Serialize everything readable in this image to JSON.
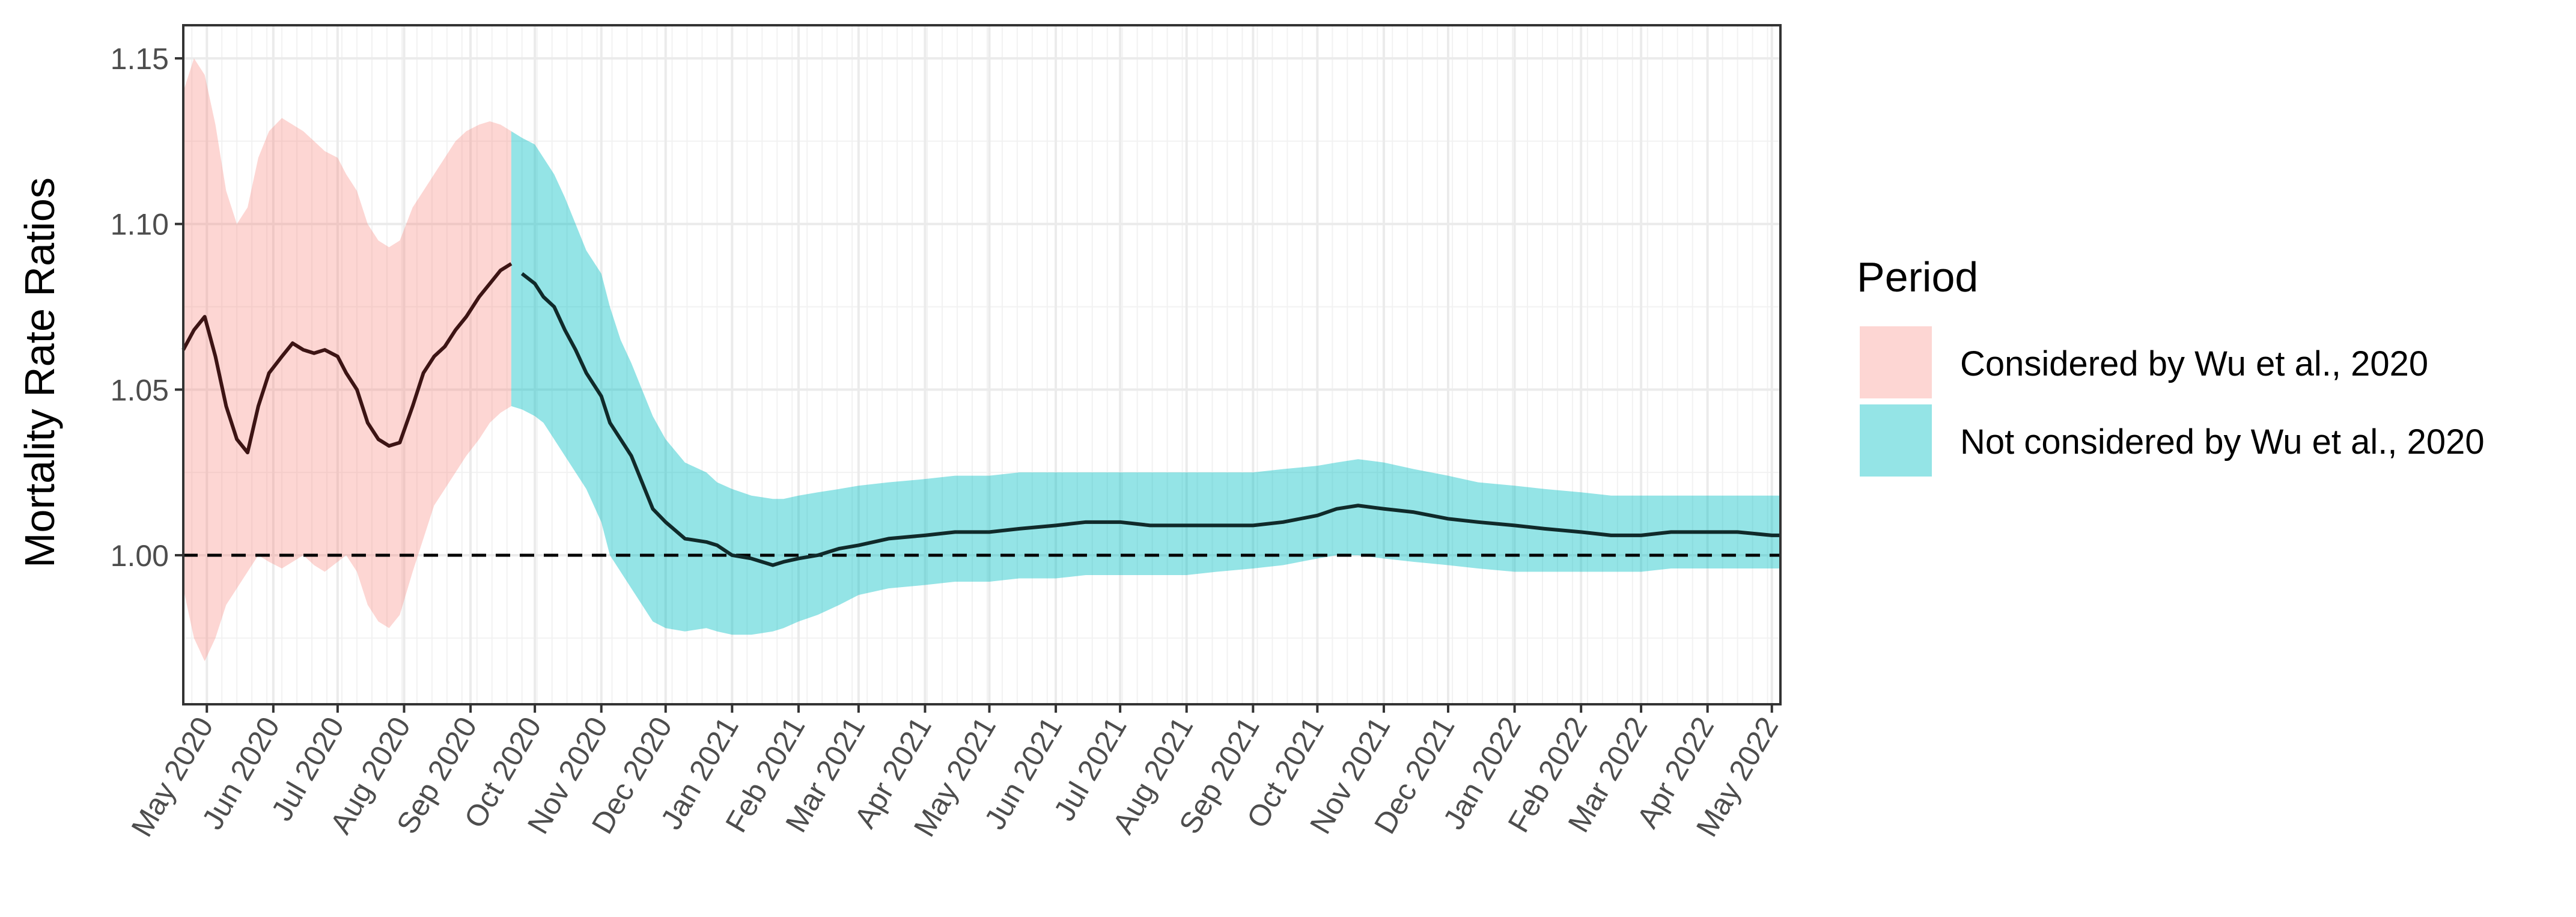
{
  "chart_data": {
    "type": "line",
    "ylabel": "Mortality Rate Ratios",
    "xlabel": "",
    "ylim": [
      0.955,
      1.16
    ],
    "xlim": [
      "2020-04-20",
      "2022-05-05"
    ],
    "yticks": [
      1.0,
      1.05,
      1.1,
      1.15
    ],
    "ytick_labels": [
      "1.00",
      "1.05",
      "1.10",
      "1.15"
    ],
    "xtick_labels": [
      "May 2020",
      "Jun 2020",
      "Jul 2020",
      "Aug 2020",
      "Sep 2020",
      "Oct 2020",
      "Nov 2020",
      "Dec 2020",
      "Jan 2021",
      "Feb 2021",
      "Mar 2021",
      "Apr 2021",
      "May 2021",
      "Jun 2021",
      "Jul 2021",
      "Aug 2021",
      "Sep 2021",
      "Oct 2021",
      "Nov 2021",
      "Dec 2021",
      "Jan 2022",
      "Feb 2022",
      "Mar 2022",
      "Apr 2022",
      "May 2022"
    ],
    "grid": true,
    "reference_line": 1.0,
    "legend": {
      "title": "Period",
      "position": "right",
      "items": [
        {
          "label": "Considered by Wu et al., 2020",
          "color": "#F8766D"
        },
        {
          "label": "Not considered by Wu et al., 2020",
          "color": "#00BFC4"
        }
      ]
    },
    "split_date": "2020-09-22",
    "series": [
      {
        "x": [
          "2020-04-20",
          "2020-04-25",
          "2020-04-30",
          "2020-05-05",
          "2020-05-10",
          "2020-05-15",
          "2020-05-20",
          "2020-05-25",
          "2020-05-30",
          "2020-06-05",
          "2020-06-10",
          "2020-06-15",
          "2020-06-20",
          "2020-06-25",
          "2020-07-01",
          "2020-07-05",
          "2020-07-10",
          "2020-07-15",
          "2020-07-20",
          "2020-07-25",
          "2020-07-30",
          "2020-08-05",
          "2020-08-10",
          "2020-08-15",
          "2020-08-20",
          "2020-08-25",
          "2020-08-30",
          "2020-09-05",
          "2020-09-10",
          "2020-09-15",
          "2020-09-20",
          "2020-09-25",
          "2020-10-01",
          "2020-10-05",
          "2020-10-10",
          "2020-10-15",
          "2020-10-20",
          "2020-10-25",
          "2020-11-01",
          "2020-11-05",
          "2020-11-10",
          "2020-11-15",
          "2020-11-20",
          "2020-11-25",
          "2020-12-01",
          "2020-12-10",
          "2020-12-20",
          "2020-12-25",
          "2021-01-01",
          "2021-01-10",
          "2021-01-20",
          "2021-01-25",
          "2021-02-01",
          "2021-02-10",
          "2021-02-20",
          "2021-03-01",
          "2021-03-15",
          "2021-04-01",
          "2021-04-15",
          "2021-05-01",
          "2021-05-15",
          "2021-06-01",
          "2021-06-15",
          "2021-07-01",
          "2021-07-15",
          "2021-08-01",
          "2021-08-15",
          "2021-09-01",
          "2021-09-15",
          "2021-10-01",
          "2021-10-10",
          "2021-10-20",
          "2021-11-01",
          "2021-11-15",
          "2021-12-01",
          "2021-12-15",
          "2022-01-01",
          "2022-01-15",
          "2022-02-01",
          "2022-02-15",
          "2022-03-01",
          "2022-03-15",
          "2022-04-01",
          "2022-04-15",
          "2022-05-01",
          "2022-05-05"
        ],
        "y": [
          1.062,
          1.068,
          1.072,
          1.06,
          1.045,
          1.035,
          1.031,
          1.045,
          1.055,
          1.06,
          1.064,
          1.062,
          1.061,
          1.062,
          1.06,
          1.055,
          1.05,
          1.04,
          1.035,
          1.033,
          1.034,
          1.045,
          1.055,
          1.06,
          1.063,
          1.068,
          1.072,
          1.078,
          1.082,
          1.086,
          1.088,
          1.085,
          1.082,
          1.078,
          1.075,
          1.068,
          1.062,
          1.055,
          1.048,
          1.04,
          1.035,
          1.03,
          1.022,
          1.014,
          1.01,
          1.005,
          1.004,
          1.003,
          1.0,
          0.999,
          0.997,
          0.998,
          0.999,
          1.0,
          1.002,
          1.003,
          1.005,
          1.006,
          1.007,
          1.007,
          1.008,
          1.009,
          1.01,
          1.01,
          1.009,
          1.009,
          1.009,
          1.009,
          1.01,
          1.012,
          1.014,
          1.015,
          1.014,
          1.013,
          1.011,
          1.01,
          1.009,
          1.008,
          1.007,
          1.006,
          1.006,
          1.007,
          1.007,
          1.007,
          1.006,
          1.006
        ],
        "lower": [
          0.99,
          0.975,
          0.968,
          0.975,
          0.985,
          0.99,
          0.995,
          1.0,
          0.998,
          0.996,
          0.998,
          1.0,
          0.997,
          0.995,
          0.998,
          1.0,
          0.995,
          0.985,
          0.98,
          0.978,
          0.982,
          0.995,
          1.005,
          1.015,
          1.02,
          1.025,
          1.03,
          1.035,
          1.04,
          1.043,
          1.045,
          1.044,
          1.042,
          1.04,
          1.035,
          1.03,
          1.025,
          1.02,
          1.01,
          1.0,
          0.995,
          0.99,
          0.985,
          0.98,
          0.978,
          0.977,
          0.978,
          0.977,
          0.976,
          0.976,
          0.977,
          0.978,
          0.98,
          0.982,
          0.985,
          0.988,
          0.99,
          0.991,
          0.992,
          0.992,
          0.993,
          0.993,
          0.994,
          0.994,
          0.994,
          0.994,
          0.995,
          0.996,
          0.997,
          0.999,
          1.0,
          1.0,
          0.999,
          0.998,
          0.997,
          0.996,
          0.995,
          0.995,
          0.995,
          0.995,
          0.995,
          0.996,
          0.996,
          0.996,
          0.996,
          0.996
        ],
        "upper": [
          1.14,
          1.15,
          1.145,
          1.13,
          1.11,
          1.1,
          1.105,
          1.12,
          1.128,
          1.132,
          1.13,
          1.128,
          1.125,
          1.122,
          1.12,
          1.115,
          1.11,
          1.1,
          1.095,
          1.093,
          1.095,
          1.105,
          1.11,
          1.115,
          1.12,
          1.125,
          1.128,
          1.13,
          1.131,
          1.13,
          1.128,
          1.126,
          1.124,
          1.12,
          1.115,
          1.108,
          1.1,
          1.092,
          1.085,
          1.075,
          1.065,
          1.058,
          1.05,
          1.042,
          1.035,
          1.028,
          1.025,
          1.022,
          1.02,
          1.018,
          1.017,
          1.017,
          1.018,
          1.019,
          1.02,
          1.021,
          1.022,
          1.023,
          1.024,
          1.024,
          1.025,
          1.025,
          1.025,
          1.025,
          1.025,
          1.025,
          1.025,
          1.025,
          1.026,
          1.027,
          1.028,
          1.029,
          1.028,
          1.026,
          1.024,
          1.022,
          1.021,
          1.02,
          1.019,
          1.018,
          1.018,
          1.018,
          1.018,
          1.018,
          1.018,
          1.018
        ]
      }
    ]
  }
}
